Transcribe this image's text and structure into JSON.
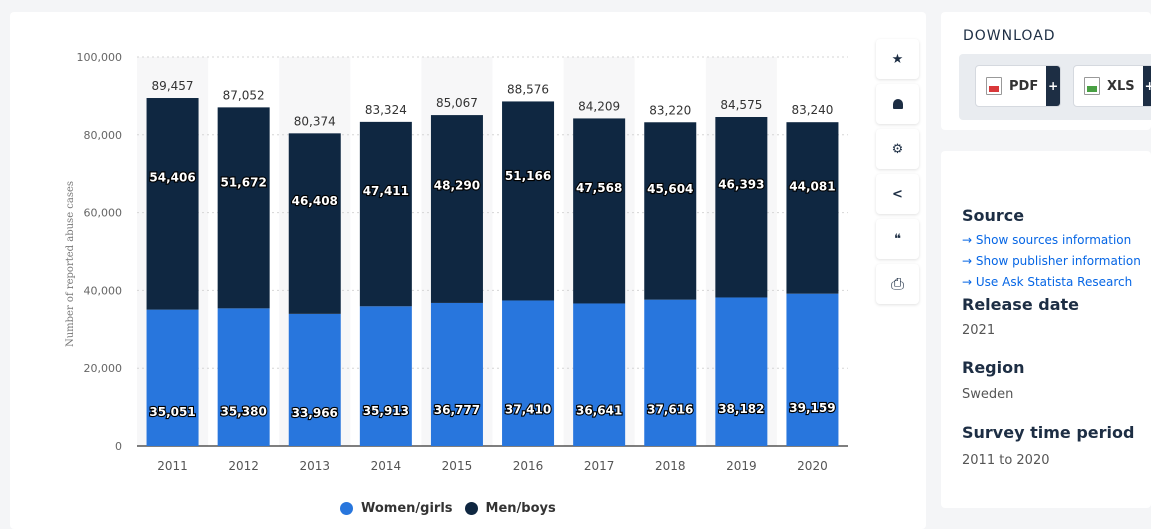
{
  "chart_data": {
    "type": "bar",
    "stacked": true,
    "categories": [
      "2011",
      "2012",
      "2013",
      "2014",
      "2015",
      "2016",
      "2017",
      "2018",
      "2019",
      "2020"
    ],
    "series": [
      {
        "name": "Women/girls",
        "color": "#2876dd",
        "values": [
          35051,
          35380,
          33966,
          35913,
          36777,
          37410,
          36641,
          37616,
          38182,
          39159
        ]
      },
      {
        "name": "Men/boys",
        "color": "#0f2741",
        "values": [
          54406,
          51672,
          46408,
          47411,
          48290,
          51166,
          47568,
          45604,
          46393,
          44081
        ]
      }
    ],
    "totals": [
      89457,
      87052,
      80374,
      83324,
      85067,
      88576,
      84209,
      83220,
      84575,
      83240
    ],
    "ylabel": "Number of reported abuse cases",
    "xlabel": "",
    "ylim": [
      0,
      100000
    ],
    "yticks": [
      0,
      20000,
      40000,
      60000,
      80000,
      100000
    ],
    "ytick_labels": [
      "0",
      "20,000",
      "40,000",
      "60,000",
      "80,000",
      "100,000"
    ],
    "grid": true,
    "legend_position": "bottom"
  },
  "tools": [
    {
      "icon": "star-icon",
      "glyph": "★"
    },
    {
      "icon": "bell-icon",
      "glyph": "🔔"
    },
    {
      "icon": "gear-icon",
      "glyph": "⚙"
    },
    {
      "icon": "share-icon",
      "glyph": "<"
    },
    {
      "icon": "quote-icon",
      "glyph": "❝"
    },
    {
      "icon": "print-icon",
      "glyph": "⎙"
    }
  ],
  "download": {
    "title": "DOWNLOAD",
    "pdf_label": "PDF",
    "xls_label": "XLS",
    "plus": "+"
  },
  "info": {
    "source_heading": "Source",
    "links": [
      "Show sources information",
      "Show publisher information",
      "Use Ask Statista Research"
    ],
    "release_heading": "Release date",
    "release_value": "2021",
    "region_heading": "Region",
    "region_value": "Sweden",
    "period_heading": "Survey time period",
    "period_value": "2011 to 2020"
  }
}
